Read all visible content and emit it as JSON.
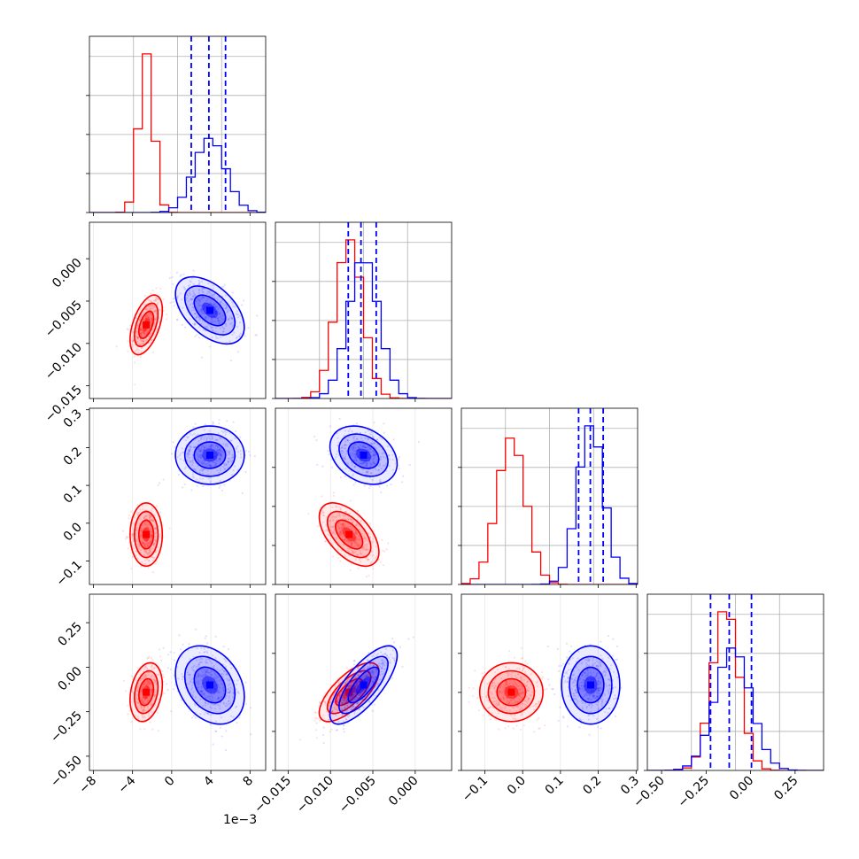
{
  "chart_data": {
    "type": "corner",
    "colors": {
      "series_a": "#ff0000",
      "series_b": "#0000ff"
    },
    "grid": true,
    "offset_label": "1e−3",
    "axes": [
      {
        "range": [
          -8.4,
          9.6
        ],
        "ticks": [
          -8,
          -4,
          0,
          4,
          8
        ],
        "tick_labels": [
          "−8",
          "−4",
          "0",
          "4",
          "8"
        ]
      },
      {
        "range": [
          -0.0165,
          0.0043
        ],
        "ticks": [
          -0.015,
          -0.01,
          -0.005,
          0.0
        ],
        "tick_labels": [
          "−0.015",
          "−0.010",
          "−0.005",
          "0.000"
        ]
      },
      {
        "range": [
          -0.162,
          0.304
        ],
        "ticks": [
          -0.1,
          0.0,
          0.1,
          0.2,
          0.3
        ],
        "tick_labels": [
          "−0.1",
          "0.0",
          "0.1",
          "0.2",
          "0.3"
        ]
      },
      {
        "range": [
          -0.58,
          0.41
        ],
        "ticks": [
          -0.5,
          -0.25,
          0.0,
          0.25
        ],
        "tick_labels": [
          "−0.50",
          "−0.25",
          "0.00",
          "0.25"
        ]
      }
    ],
    "series": [
      {
        "color": "#ff0000",
        "mean": [
          -2.6,
          -0.0078,
          -0.03,
          -0.14
        ],
        "std": [
          0.75,
          0.0016,
          0.038,
          0.075
        ],
        "corr": [
          [
            0,
            1,
            0.5
          ],
          [
            0,
            3,
            0.25
          ],
          [
            1,
            2,
            -0.55
          ],
          [
            1,
            3,
            0.7
          ]
        ],
        "quantiles": []
      },
      {
        "color": "#0000ff",
        "mean": [
          3.9,
          -0.0061,
          0.18,
          -0.1
        ],
        "std": [
          1.6,
          0.0018,
          0.035,
          0.1
        ],
        "corr": [
          [
            0,
            1,
            -0.5
          ],
          [
            0,
            3,
            -0.3
          ],
          [
            1,
            2,
            -0.3
          ],
          [
            1,
            3,
            0.75
          ]
        ],
        "quantiles": [
          [
            2.0,
            3.8,
            5.5
          ],
          [
            -0.0079,
            -0.0064,
            -0.0046
          ],
          [
            0.148,
            0.179,
            0.213
          ],
          [
            -0.225,
            -0.12,
            0.005
          ]
        ]
      }
    ]
  }
}
